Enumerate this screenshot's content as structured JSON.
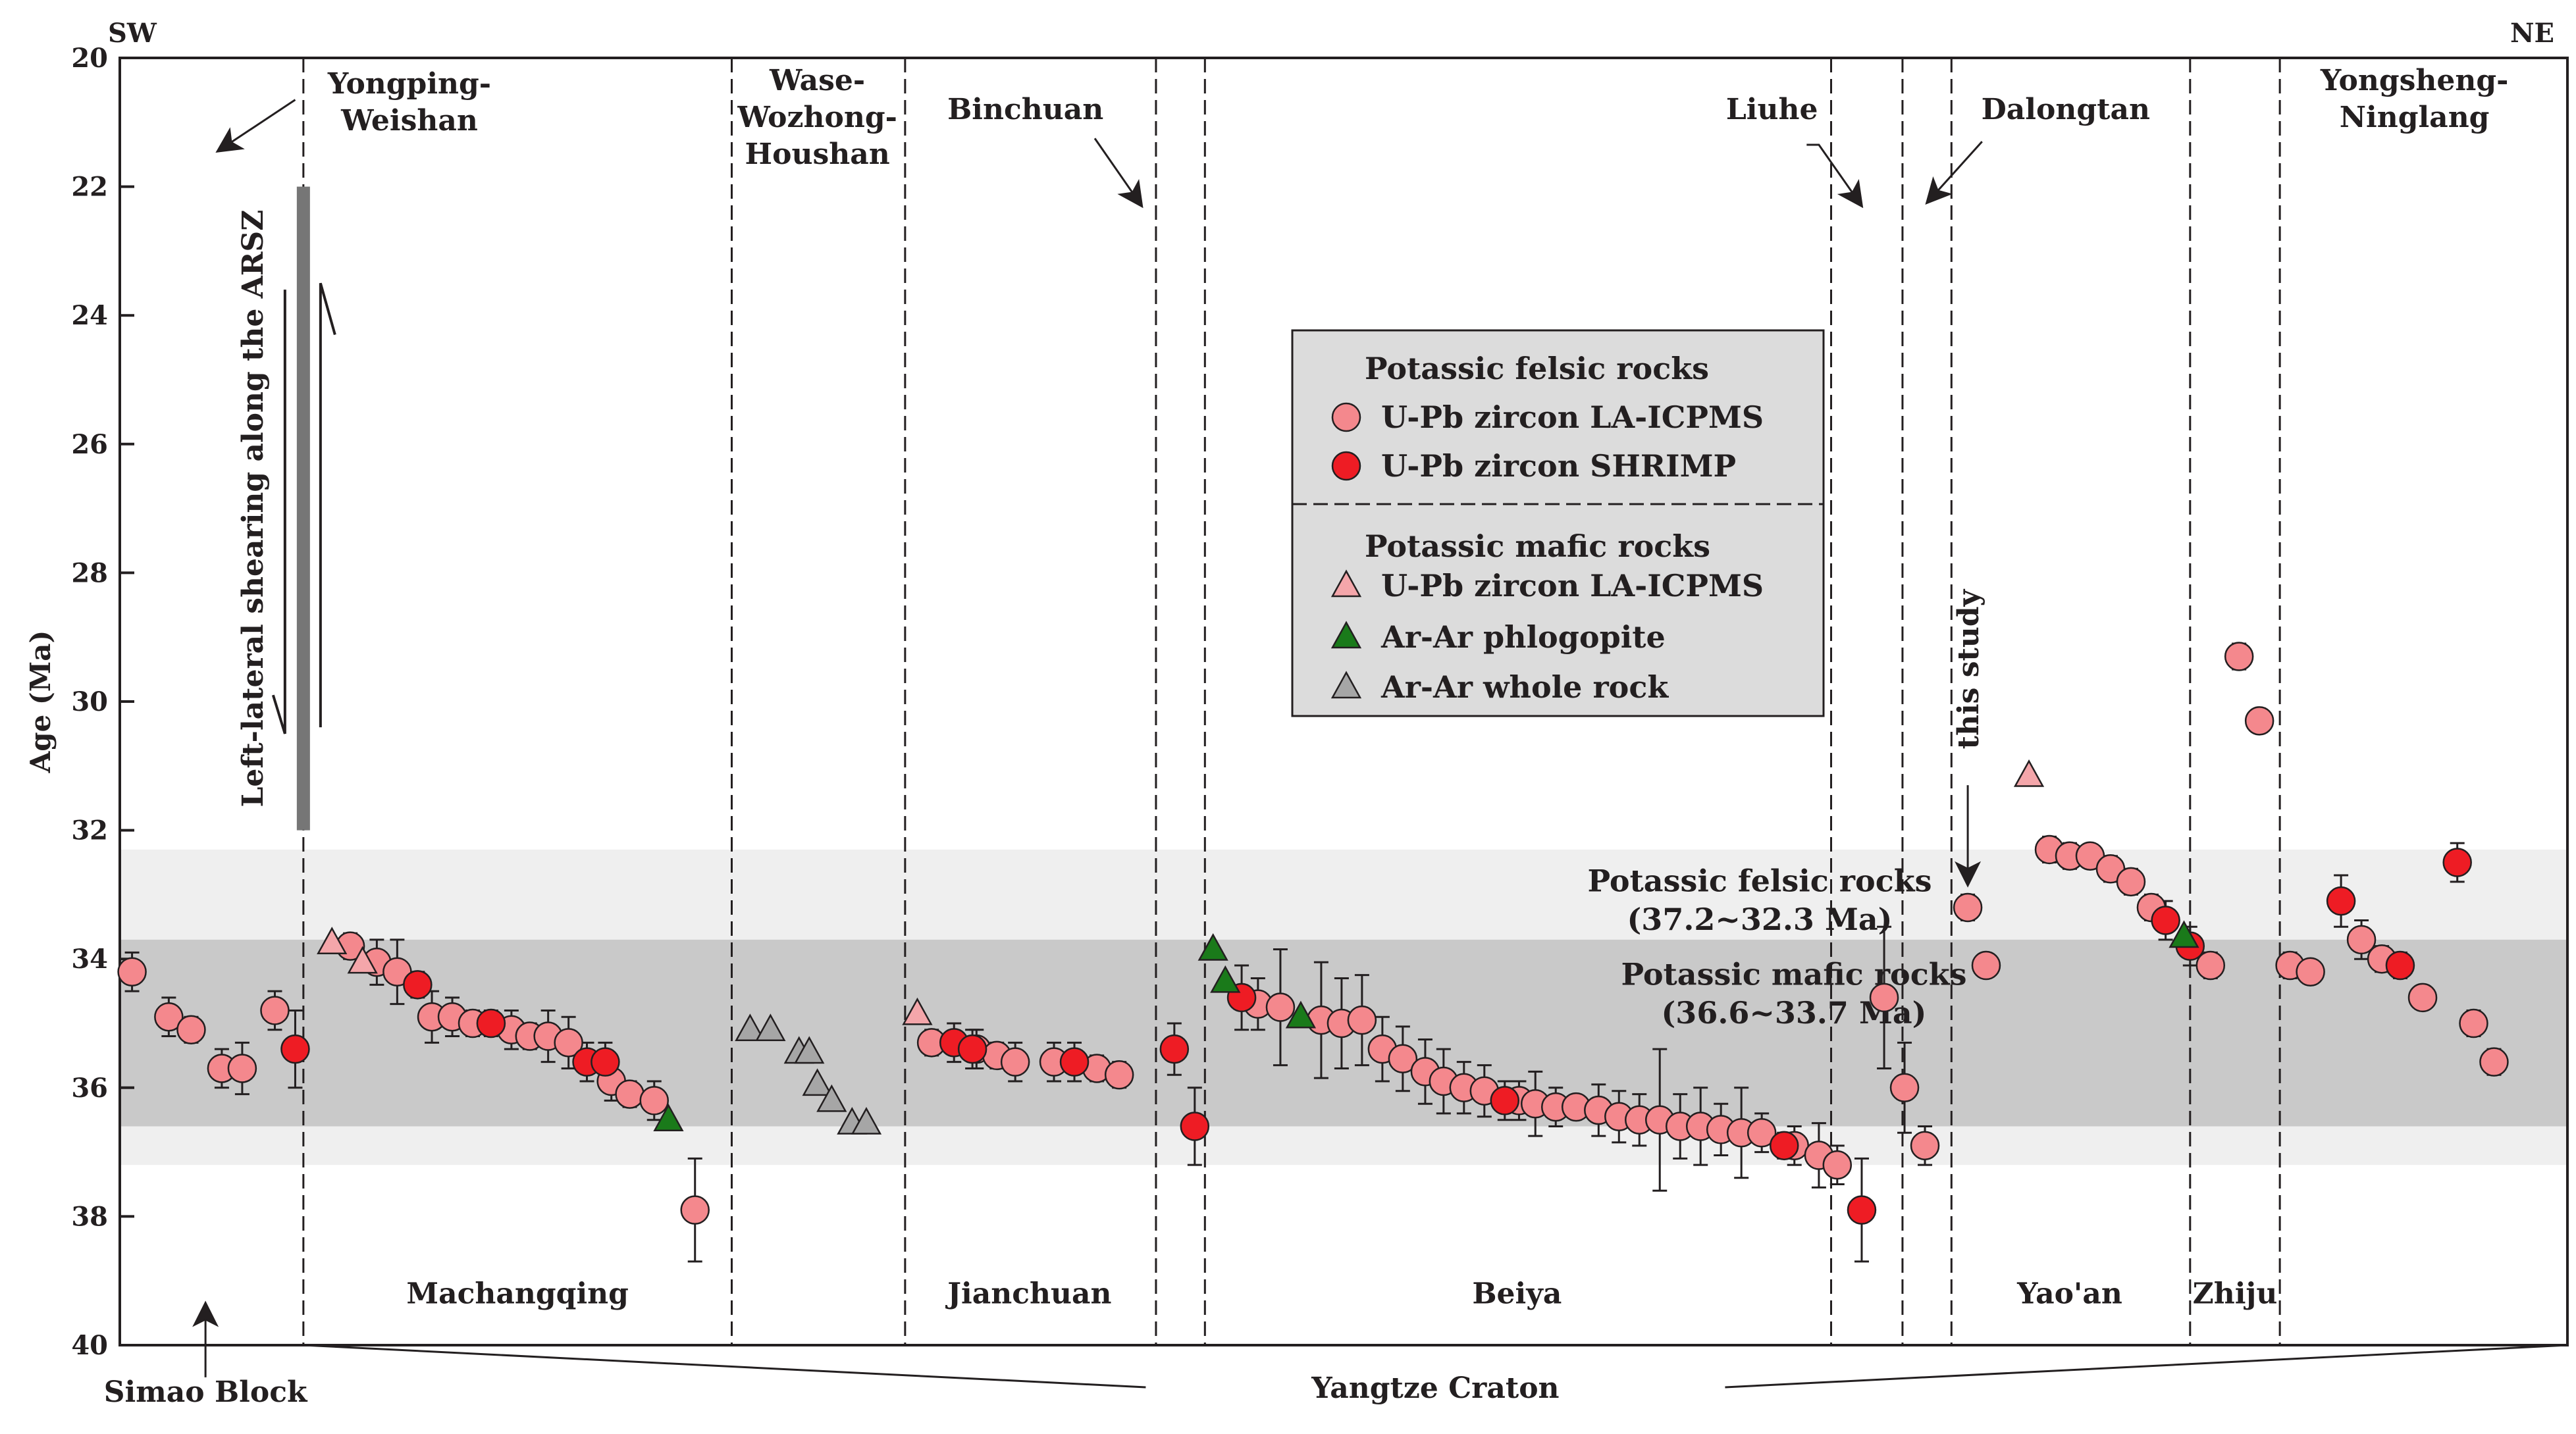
{
  "chart_data": {
    "type": "scatter",
    "title": "",
    "xlabel": "",
    "ylabel": "Age (Ma)",
    "ylim": [
      20,
      40
    ],
    "y_inverted": true,
    "y_ticks": [
      20,
      22,
      24,
      26,
      28,
      30,
      32,
      34,
      36,
      38,
      40
    ],
    "x_range": [
      0,
      120
    ],
    "direction_labels": {
      "left": "SW",
      "right": "NE"
    },
    "bands": [
      {
        "name": "felsic",
        "label_line1": "Potassic felsic rocks",
        "label_line2": "(37.2~32.3 Ma)",
        "y_range": [
          32.3,
          37.2
        ],
        "color": "#efefef"
      },
      {
        "name": "mafic",
        "label_line1": "Potassic mafic rocks",
        "label_line2": "(36.6~33.7 Ma)",
        "y_range": [
          33.7,
          36.6
        ],
        "color": "#c9c9c9"
      }
    ],
    "dividers": [
      9,
      30,
      38.5,
      50.8,
      53.2,
      83.9,
      87.4,
      89.8,
      101.5,
      105.9
    ],
    "regions_bottom": [
      {
        "name": "Machangqing",
        "x": 19.5
      },
      {
        "name": "Jianchuan",
        "x": 44.6
      },
      {
        "name": "Beiya",
        "x": 68.5
      },
      {
        "name": "Yao'an",
        "x": 95.6
      },
      {
        "name": "Zhiju",
        "x": 103.7
      }
    ],
    "regions_top": [
      {
        "lines": [
          "Yongping-",
          "Weishan"
        ],
        "x": 14.2,
        "y": 20.55
      },
      {
        "lines": [
          "Wase-",
          "Wozhong-",
          "Houshan"
        ],
        "x": 34.2,
        "y": 20.5
      },
      {
        "lines": [
          "Binchuan"
        ],
        "x": 44.4,
        "y": 20.95
      },
      {
        "lines": [
          "Liuhe"
        ],
        "x": 81,
        "y": 20.95
      },
      {
        "lines": [
          "Dalongtan"
        ],
        "x": 95.4,
        "y": 20.95
      },
      {
        "lines": [
          "Yongsheng-",
          "Ninglang"
        ],
        "x": 112.5,
        "y": 20.5
      }
    ],
    "bottom_labels": {
      "simao": "Simao Block",
      "yangtze": "Yangtze Craton"
    },
    "shear_label": "Left-lateral shearing along the ARSZ",
    "this_study_label": "this study",
    "shear_bar": {
      "x": 9.0,
      "y_range": [
        22.0,
        32.0
      ]
    },
    "legend": {
      "felsic_title": "Potassic felsic rocks",
      "mafic_title": "Potassic mafic rocks",
      "items": [
        {
          "group": "felsic",
          "symbol": "circle",
          "fill": "#f4888d",
          "label": "U-Pb zircon LA-ICPMS"
        },
        {
          "group": "felsic",
          "symbol": "circle",
          "fill": "#ee1c24",
          "label": "U-Pb zircon SHRIMP"
        },
        {
          "group": "mafic",
          "symbol": "triangle",
          "fill": "#f4a6aa",
          "label": "U-Pb zircon LA-ICPMS"
        },
        {
          "group": "mafic",
          "symbol": "triangle",
          "fill": "#1a7a1a",
          "label": "Ar-Ar phlogopite"
        },
        {
          "group": "mafic",
          "symbol": "triangle",
          "fill": "#a6a6a6",
          "label": "Ar-Ar whole rock"
        }
      ]
    },
    "series": [
      {
        "name": "Felsic U-Pb zircon LA-ICPMS",
        "symbol": "circle",
        "fill": "#f4888d",
        "points": [
          [
            0.6,
            34.2,
            0.3
          ],
          [
            2.4,
            34.9,
            0.3
          ],
          [
            3.5,
            35.1,
            0.2
          ],
          [
            5.0,
            35.7,
            0.3
          ],
          [
            6.0,
            35.7,
            0.4
          ],
          [
            7.6,
            34.8,
            0.3
          ],
          [
            11.3,
            33.8,
            0.2
          ],
          [
            12.6,
            34.05,
            0.35
          ],
          [
            13.6,
            34.2,
            0.5
          ],
          [
            15.3,
            34.9,
            0.4
          ],
          [
            16.3,
            34.9,
            0.3
          ],
          [
            17.3,
            35.0,
            0.2
          ],
          [
            19.2,
            35.1,
            0.3
          ],
          [
            20.1,
            35.2,
            0.2
          ],
          [
            21.0,
            35.2,
            0.4
          ],
          [
            22.0,
            35.3,
            0.4
          ],
          [
            24.1,
            35.9,
            0.3
          ],
          [
            25.0,
            36.1,
            0.2
          ],
          [
            26.2,
            36.2,
            0.3
          ],
          [
            28.2,
            37.9,
            0.8
          ],
          [
            39.8,
            35.3,
            0.2
          ],
          [
            42.0,
            35.4,
            0.3
          ],
          [
            43.0,
            35.5,
            0.2
          ],
          [
            43.9,
            35.6,
            0.3
          ],
          [
            45.8,
            35.6,
            0.3
          ],
          [
            47.9,
            35.7,
            0.2
          ],
          [
            49.0,
            35.8,
            0.2
          ],
          [
            55.8,
            34.7,
            0.4
          ],
          [
            56.9,
            34.75,
            0.9
          ],
          [
            58.9,
            34.95,
            0.9
          ],
          [
            59.9,
            35.0,
            0.7
          ],
          [
            60.9,
            34.95,
            0.7
          ],
          [
            61.9,
            35.4,
            0.5
          ],
          [
            62.9,
            35.55,
            0.5
          ],
          [
            64.0,
            35.75,
            0.5
          ],
          [
            64.9,
            35.9,
            0.5
          ],
          [
            65.9,
            36.0,
            0.4
          ],
          [
            66.9,
            36.05,
            0.4
          ],
          [
            68.6,
            36.2,
            0.3
          ],
          [
            69.4,
            36.25,
            0.5
          ],
          [
            70.4,
            36.3,
            0.3
          ],
          [
            71.4,
            36.3,
            0.15
          ],
          [
            72.5,
            36.35,
            0.4
          ],
          [
            73.5,
            36.45,
            0.4
          ],
          [
            74.5,
            36.5,
            0.4
          ],
          [
            75.5,
            36.5,
            1.1
          ],
          [
            76.5,
            36.6,
            0.5
          ],
          [
            77.5,
            36.6,
            0.6
          ],
          [
            78.5,
            36.65,
            0.4
          ],
          [
            79.5,
            36.7,
            0.7
          ],
          [
            80.5,
            36.7,
            0.3
          ],
          [
            82.1,
            36.9,
            0.3
          ],
          [
            83.3,
            37.05,
            0.5
          ],
          [
            84.2,
            37.2,
            0.3
          ],
          [
            86.5,
            34.6,
            1.1
          ],
          [
            87.5,
            36.0,
            0.7
          ],
          [
            88.5,
            36.9,
            0.3
          ],
          [
            90.6,
            33.2,
            0.2
          ],
          [
            91.5,
            34.1,
            0.15
          ],
          [
            94.6,
            32.3,
            0.2
          ],
          [
            95.6,
            32.4,
            0.2
          ],
          [
            96.6,
            32.4,
            0.1
          ],
          [
            97.6,
            32.6,
            0.2
          ],
          [
            98.6,
            32.8,
            0.2
          ],
          [
            99.6,
            33.2,
            0.2
          ],
          [
            102.5,
            34.1,
            0.2
          ],
          [
            103.9,
            29.3,
            0.2
          ],
          [
            104.9,
            30.3,
            0.1
          ],
          [
            106.4,
            34.1,
            0.2
          ],
          [
            107.4,
            34.2,
            0.15
          ],
          [
            109.9,
            33.7,
            0.3
          ],
          [
            110.9,
            34.0,
            0.2
          ],
          [
            112.9,
            34.6,
            0.15
          ],
          [
            115.4,
            35.0,
            0.2
          ],
          [
            116.4,
            35.6,
            0.2
          ]
        ]
      },
      {
        "name": "Felsic U-Pb zircon SHRIMP",
        "symbol": "circle",
        "fill": "#ee1c24",
        "points": [
          [
            8.6,
            35.4,
            0.6
          ],
          [
            14.6,
            34.4,
            0.2
          ],
          [
            18.2,
            35.0,
            0.2
          ],
          [
            22.9,
            35.6,
            0.3
          ],
          [
            23.8,
            35.6,
            0.3
          ],
          [
            40.9,
            35.3,
            0.3
          ],
          [
            41.8,
            35.4,
            0.3
          ],
          [
            46.8,
            35.6,
            0.3
          ],
          [
            51.7,
            35.4,
            0.4
          ],
          [
            52.7,
            36.6,
            0.6
          ],
          [
            55.0,
            34.6,
            0.5
          ],
          [
            67.9,
            36.2,
            0.3
          ],
          [
            81.6,
            36.9,
            0.2
          ],
          [
            85.4,
            37.9,
            0.8
          ],
          [
            100.3,
            33.4,
            0.3
          ],
          [
            101.5,
            33.8,
            0.3
          ],
          [
            108.9,
            33.1,
            0.4
          ],
          [
            111.8,
            34.1,
            0.2
          ],
          [
            114.6,
            32.5,
            0.3
          ]
        ]
      },
      {
        "name": "Mafic U-Pb zircon LA-ICPMS",
        "symbol": "triangle",
        "fill": "#f4a6aa",
        "points": [
          [
            10.4,
            33.75,
            0
          ],
          [
            11.9,
            34.05,
            0
          ],
          [
            39.1,
            34.85,
            0
          ],
          [
            93.6,
            31.15,
            0
          ]
        ]
      },
      {
        "name": "Mafic Ar-Ar phlogopite",
        "symbol": "triangle",
        "fill": "#1a7a1a",
        "points": [
          [
            26.9,
            36.5,
            0
          ],
          [
            53.6,
            33.85,
            0
          ],
          [
            54.2,
            34.35,
            0
          ],
          [
            57.9,
            34.9,
            0
          ],
          [
            101.2,
            33.65,
            0
          ]
        ]
      },
      {
        "name": "Mafic Ar-Ar whole rock",
        "symbol": "triangle",
        "fill": "#a6a6a6",
        "points": [
          [
            30.9,
            35.1,
            0
          ],
          [
            31.9,
            35.1,
            0
          ],
          [
            33.3,
            35.45,
            0
          ],
          [
            33.8,
            35.45,
            0
          ],
          [
            34.2,
            35.95,
            0
          ],
          [
            34.9,
            36.2,
            0
          ],
          [
            35.9,
            36.55,
            0
          ],
          [
            36.6,
            36.55,
            0
          ]
        ]
      }
    ]
  }
}
